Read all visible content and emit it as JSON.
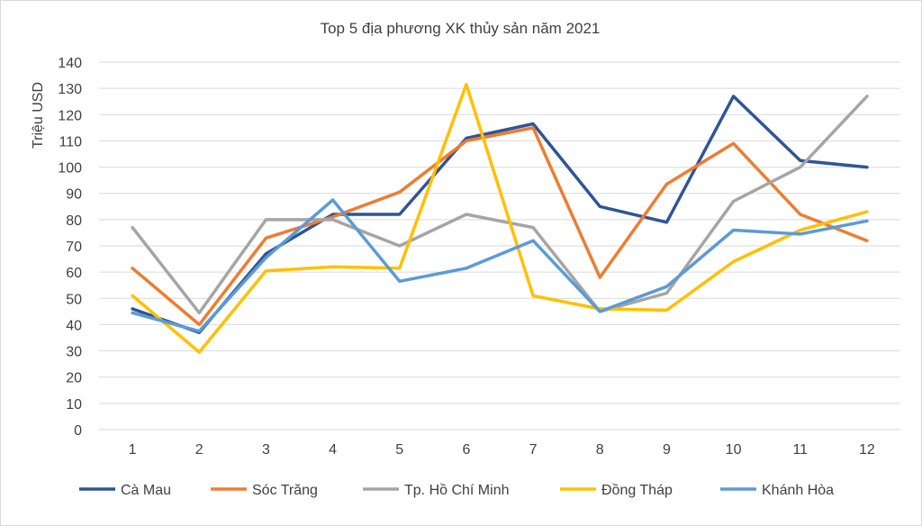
{
  "chart_data": {
    "type": "line",
    "title": "Top 5 địa phương XK thủy sản năm 2021",
    "xlabel": "",
    "ylabel": "Triệu USD",
    "ylim": [
      0,
      140
    ],
    "ytick_step": 10,
    "grid": true,
    "legend_position": "bottom",
    "categories": [
      "1",
      "2",
      "3",
      "4",
      "5",
      "6",
      "7",
      "8",
      "9",
      "10",
      "11",
      "12"
    ],
    "series": [
      {
        "name": "Cà Mau",
        "color": "#2F5597",
        "values": [
          46,
          37,
          67,
          82,
          82,
          111,
          116.5,
          85,
          79,
          127,
          102.5,
          100
        ]
      },
      {
        "name": "Sóc Trăng",
        "color": "#ED7D31",
        "values": [
          61.5,
          40,
          73,
          81,
          90.5,
          110,
          115,
          58,
          93.5,
          109,
          82,
          72
        ]
      },
      {
        "name": "Tp. Hồ Chí Minh",
        "color": "#A5A5A5",
        "values": [
          77,
          44.5,
          80,
          80,
          70,
          82,
          77,
          45,
          52,
          87,
          100,
          127
        ]
      },
      {
        "name": "Đồng Tháp",
        "color": "#FFC000",
        "values": [
          51,
          29.5,
          60.5,
          62,
          61.5,
          131.5,
          51,
          46,
          45.5,
          64,
          76,
          83
        ]
      },
      {
        "name": "Khánh Hòa",
        "color": "#5B9BD5",
        "values": [
          44.5,
          37.5,
          65.5,
          87.5,
          56.5,
          61.5,
          72,
          45,
          54.5,
          76,
          74.5,
          79.5
        ]
      }
    ]
  }
}
